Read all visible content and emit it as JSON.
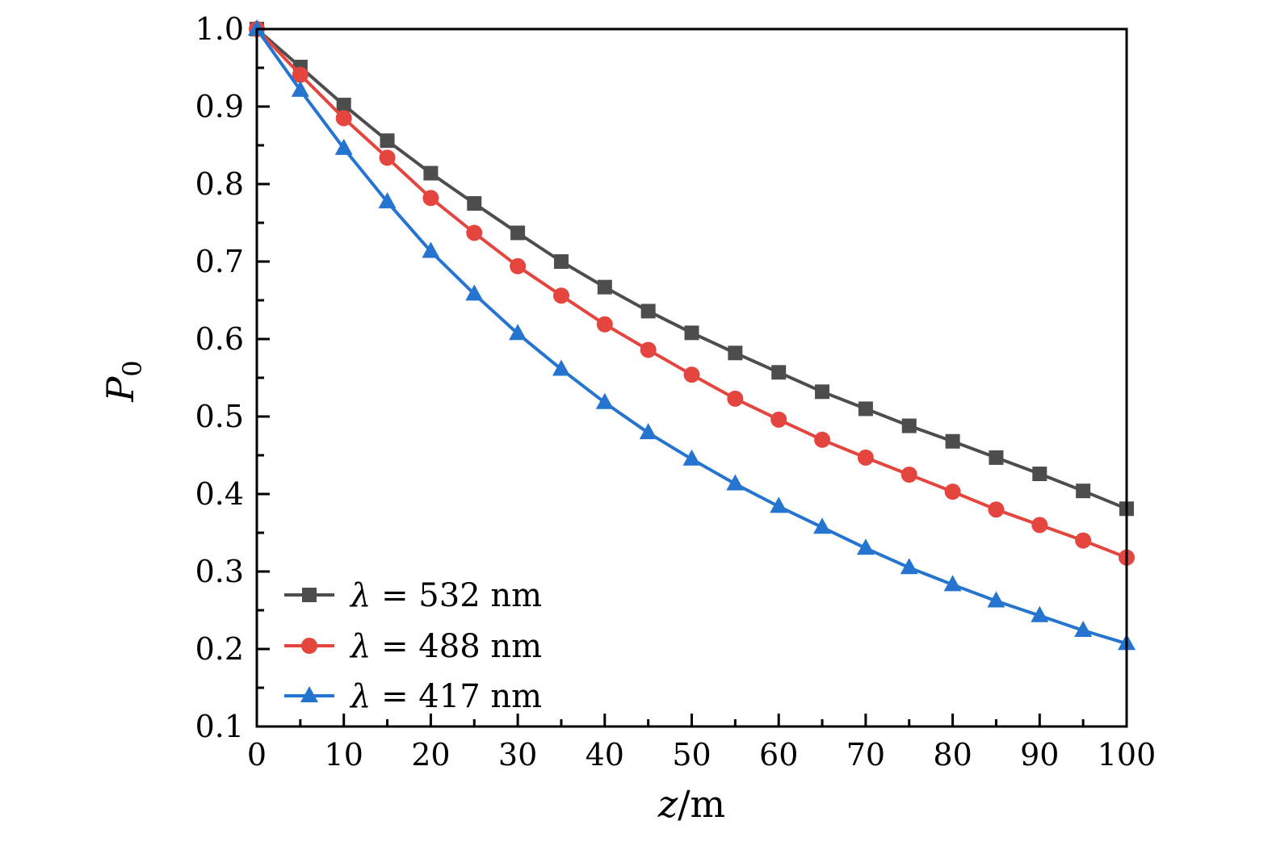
{
  "chart_data": {
    "type": "line",
    "title": "",
    "xlabel_var": "z",
    "xlabel_unit": "/m",
    "ylabel_var": "P",
    "ylabel_sub": "0",
    "xlim": [
      0,
      100
    ],
    "ylim": [
      0.1,
      1.0
    ],
    "xticks": [
      0,
      10,
      20,
      30,
      40,
      50,
      60,
      70,
      80,
      90,
      100
    ],
    "xtick_labels": [
      "0",
      "10",
      "20",
      "30",
      "40",
      "50",
      "60",
      "70",
      "80",
      "90",
      "100"
    ],
    "yticks": [
      0.1,
      0.2,
      0.3,
      0.4,
      0.5,
      0.6,
      0.7,
      0.8,
      0.9,
      1.0
    ],
    "ytick_labels": [
      "0.1",
      "0.2",
      "0.3",
      "0.4",
      "0.5",
      "0.6",
      "0.7",
      "0.8",
      "0.9",
      "1.0"
    ],
    "grid": false,
    "frame": true,
    "legend_position": "inside-bottom-left",
    "axis_color": "#000000",
    "x": [
      0,
      5,
      10,
      15,
      20,
      25,
      30,
      35,
      40,
      45,
      50,
      55,
      60,
      65,
      70,
      75,
      80,
      85,
      90,
      95,
      100
    ],
    "series": [
      {
        "name": "λ = 532 nm",
        "marker": "square",
        "color": "#4d4d4d",
        "values": [
          1.0,
          0.951,
          0.902,
          0.856,
          0.814,
          0.775,
          0.737,
          0.7,
          0.667,
          0.636,
          0.608,
          0.582,
          0.557,
          0.532,
          0.51,
          0.488,
          0.468,
          0.447,
          0.426,
          0.404,
          0.381
        ]
      },
      {
        "name": "λ = 488 nm",
        "marker": "circle",
        "color": "#e5453f",
        "values": [
          1.0,
          0.941,
          0.885,
          0.834,
          0.782,
          0.737,
          0.694,
          0.656,
          0.619,
          0.586,
          0.554,
          0.523,
          0.496,
          0.47,
          0.447,
          0.425,
          0.403,
          0.38,
          0.36,
          0.34,
          0.318
        ]
      },
      {
        "name": "λ = 417 nm",
        "marker": "triangle",
        "color": "#2575d0",
        "values": [
          1.0,
          0.921,
          0.846,
          0.777,
          0.713,
          0.658,
          0.607,
          0.561,
          0.518,
          0.479,
          0.445,
          0.413,
          0.384,
          0.357,
          0.33,
          0.305,
          0.283,
          0.262,
          0.243,
          0.224,
          0.207
        ]
      }
    ]
  }
}
